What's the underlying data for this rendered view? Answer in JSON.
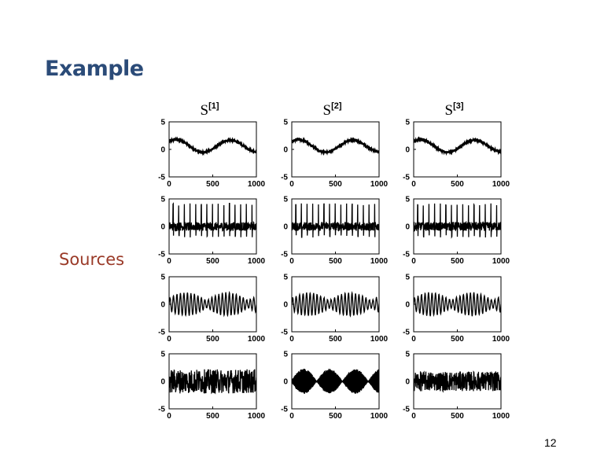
{
  "slide": {
    "title": "Example",
    "side_label": "Sources",
    "page_number": "12"
  },
  "chart_data": {
    "type": "line",
    "layout": "grid 4 rows x 3 columns of small multiples",
    "column_titles": [
      {
        "base": "S",
        "sup": "[1]"
      },
      {
        "base": "S",
        "sup": "[2]"
      },
      {
        "base": "S",
        "sup": "[3]"
      }
    ],
    "x_ticks": [
      0,
      500,
      1000
    ],
    "y_ticks": [
      -5,
      0,
      5
    ],
    "xlim": [
      0,
      1000
    ],
    "ylim": [
      -5,
      5
    ],
    "grid": false,
    "color": "#000000",
    "rows": [
      {
        "signal": "slow sine",
        "columns": [
          {
            "kind": "slow_sine"
          },
          {
            "kind": "slow_sine"
          },
          {
            "kind": "slow_sine"
          }
        ]
      },
      {
        "signal": "periodic spikes",
        "columns": [
          {
            "kind": "spikes"
          },
          {
            "kind": "spikes"
          },
          {
            "kind": "spikes"
          }
        ]
      },
      {
        "signal": "modulated oscillation",
        "columns": [
          {
            "kind": "am_wave"
          },
          {
            "kind": "am_wave"
          },
          {
            "kind": "am_wave"
          }
        ]
      },
      {
        "signal": "noise",
        "columns": [
          {
            "kind": "noise",
            "amp": 2.2
          },
          {
            "kind": "envelope_noise"
          },
          {
            "kind": "noise",
            "amp": 1.8
          }
        ]
      }
    ]
  }
}
